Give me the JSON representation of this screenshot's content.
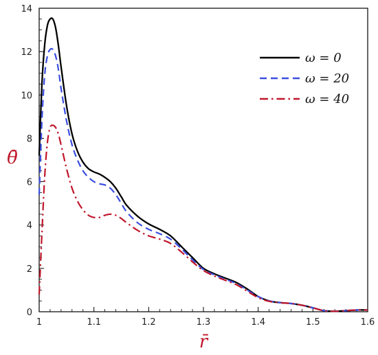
{
  "chart_data": {
    "type": "line",
    "xlabel": "r̄",
    "ylabel": "θ̄",
    "xlim": [
      1.0,
      1.6
    ],
    "ylim": [
      0,
      14
    ],
    "xticks": [
      "1",
      "1.1",
      "1.2",
      "1.3",
      "1.4",
      "1.5",
      "1.6"
    ],
    "yticks": [
      "0",
      "2",
      "4",
      "6",
      "8",
      "10",
      "12",
      "14"
    ],
    "grid": false,
    "legend_position": "top-right",
    "series": [
      {
        "name": "ω = 0",
        "color": "#000000",
        "dash": "solid",
        "x": [
          1.0,
          1.005,
          1.01,
          1.015,
          1.02,
          1.025,
          1.03,
          1.035,
          1.04,
          1.05,
          1.06,
          1.07,
          1.08,
          1.09,
          1.1,
          1.11,
          1.12,
          1.13,
          1.14,
          1.15,
          1.16,
          1.18,
          1.2,
          1.22,
          1.24,
          1.26,
          1.28,
          1.3,
          1.32,
          1.34,
          1.36,
          1.38,
          1.4,
          1.42,
          1.44,
          1.46,
          1.48,
          1.5,
          1.52,
          1.54,
          1.56,
          1.58,
          1.6
        ],
        "y": [
          7.2,
          10.5,
          12.3,
          13.2,
          13.5,
          13.5,
          13.1,
          12.3,
          11.3,
          9.5,
          8.2,
          7.4,
          6.9,
          6.6,
          6.45,
          6.35,
          6.2,
          6.0,
          5.7,
          5.3,
          4.9,
          4.4,
          4.05,
          3.8,
          3.5,
          3.0,
          2.5,
          2.0,
          1.75,
          1.55,
          1.35,
          1.05,
          0.7,
          0.5,
          0.42,
          0.38,
          0.3,
          0.18,
          0.05,
          0.02,
          0.05,
          0.08,
          0.08
        ]
      },
      {
        "name": "ω = 20",
        "color": "#3a4ee0",
        "dash": "dashed",
        "x": [
          1.0,
          1.005,
          1.01,
          1.015,
          1.02,
          1.025,
          1.03,
          1.035,
          1.04,
          1.05,
          1.06,
          1.07,
          1.08,
          1.09,
          1.1,
          1.11,
          1.12,
          1.13,
          1.14,
          1.15,
          1.16,
          1.18,
          1.2,
          1.22,
          1.24,
          1.26,
          1.28,
          1.3,
          1.32,
          1.34,
          1.36,
          1.38,
          1.4,
          1.42,
          1.44,
          1.46,
          1.48,
          1.5,
          1.52,
          1.54,
          1.56,
          1.58,
          1.6
        ],
        "y": [
          5.4,
          8.8,
          10.9,
          11.8,
          12.1,
          12.1,
          11.8,
          11.2,
          10.3,
          8.8,
          7.7,
          7.0,
          6.5,
          6.2,
          6.0,
          5.9,
          5.85,
          5.7,
          5.4,
          5.0,
          4.6,
          4.1,
          3.8,
          3.6,
          3.35,
          2.9,
          2.4,
          1.95,
          1.7,
          1.5,
          1.3,
          1.0,
          0.7,
          0.5,
          0.42,
          0.38,
          0.3,
          0.18,
          0.05,
          0.02,
          0.05,
          0.08,
          0.08
        ]
      },
      {
        "name": "ω = 40",
        "color": "#c0162a",
        "dash": "dashdot",
        "x": [
          1.0,
          1.005,
          1.01,
          1.015,
          1.02,
          1.025,
          1.03,
          1.035,
          1.04,
          1.05,
          1.06,
          1.07,
          1.08,
          1.09,
          1.1,
          1.11,
          1.12,
          1.13,
          1.14,
          1.15,
          1.16,
          1.18,
          1.2,
          1.22,
          1.24,
          1.26,
          1.28,
          1.3,
          1.32,
          1.34,
          1.36,
          1.38,
          1.4,
          1.42,
          1.44,
          1.46,
          1.48,
          1.5,
          1.52,
          1.54,
          1.56,
          1.58,
          1.6
        ],
        "y": [
          0.8,
          3.6,
          6.2,
          7.8,
          8.5,
          8.6,
          8.5,
          8.2,
          7.7,
          6.6,
          5.7,
          5.1,
          4.7,
          4.45,
          4.35,
          4.35,
          4.45,
          4.5,
          4.45,
          4.3,
          4.1,
          3.75,
          3.5,
          3.35,
          3.15,
          2.75,
          2.3,
          1.9,
          1.65,
          1.45,
          1.25,
          0.95,
          0.65,
          0.48,
          0.42,
          0.38,
          0.3,
          0.18,
          0.05,
          0.02,
          0.05,
          0.08,
          0.08
        ]
      }
    ]
  }
}
